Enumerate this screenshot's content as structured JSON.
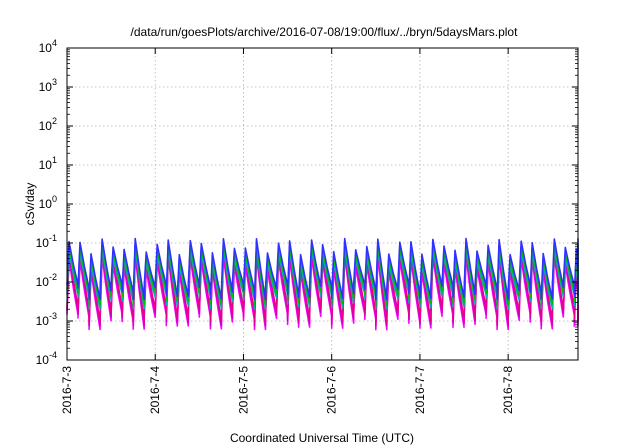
{
  "chart_data": {
    "type": "line",
    "title": "/data/run/goesPlots/archive/2016-07-08/19:00/flux/../bryn/5daysMars.plot",
    "xlabel": "Coordinated Universal Time (UTC)",
    "ylabel": "cSv/day",
    "yscale": "log",
    "ylim": [
      0.0001,
      10000
    ],
    "yticks": [
      {
        "exp": -4,
        "base": "10",
        "pow": "-4"
      },
      {
        "exp": -3,
        "base": "10",
        "pow": "-3"
      },
      {
        "exp": -2,
        "base": "10",
        "pow": "-2"
      },
      {
        "exp": -1,
        "base": "10",
        "pow": "-1"
      },
      {
        "exp": 0,
        "base": "10",
        "pow": "0"
      },
      {
        "exp": 1,
        "base": "10",
        "pow": "1"
      },
      {
        "exp": 2,
        "base": "10",
        "pow": "2"
      },
      {
        "exp": 3,
        "base": "10",
        "pow": "3"
      },
      {
        "exp": 4,
        "base": "10",
        "pow": "4"
      }
    ],
    "xlim": [
      "2016-07-03T00:00",
      "2016-07-08T19:00"
    ],
    "xticks": [
      "2016-7-3",
      "2016-7-4",
      "2016-7-5",
      "2016-7-6",
      "2016-7-7",
      "2016-7-8"
    ],
    "grid": true,
    "legend": "none",
    "pattern": {
      "period_hours": 3,
      "peak_range": [
        0.05,
        0.13
      ],
      "trough_range": [
        0.001,
        0.0025
      ]
    },
    "series": [
      {
        "color": "#ff00ff",
        "peak_scale": 0.35,
        "trough_scale": 0.6
      },
      {
        "color": "#cc00cc",
        "peak_scale": 0.5,
        "trough_scale": 0.75
      },
      {
        "color": "#e8008c",
        "peak_scale": 0.7,
        "trough_scale": 0.9
      },
      {
        "color": "#00b0b0",
        "peak_scale": 0.55,
        "trough_scale": 2.0
      },
      {
        "color": "#00c000",
        "peak_scale": 0.75,
        "trough_scale": 2.6
      },
      {
        "color": "#3030ff",
        "peak_scale": 1.0,
        "trough_scale": 3.5
      }
    ]
  }
}
